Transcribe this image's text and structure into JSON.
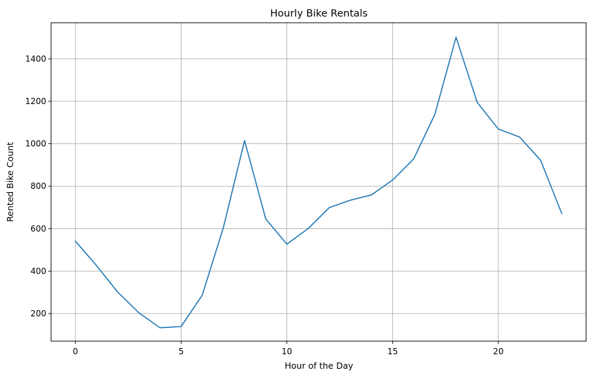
{
  "chart_data": {
    "type": "line",
    "title": "Hourly Bike Rentals",
    "xlabel": "Hour of the Day",
    "ylabel": "Rented Bike Count",
    "xlim": [
      -1.15,
      24.15
    ],
    "ylim": [
      70,
      1570
    ],
    "xticks": [
      0,
      5,
      10,
      15,
      20
    ],
    "yticks": [
      200,
      400,
      600,
      800,
      1000,
      1200,
      1400
    ],
    "grid": true,
    "series": [
      {
        "name": "",
        "color": "#1f77b4",
        "x": [
          0,
          1,
          2,
          3,
          4,
          5,
          6,
          7,
          8,
          9,
          10,
          11,
          12,
          13,
          14,
          15,
          16,
          17,
          18,
          19,
          20,
          21,
          22,
          23
        ],
        "y": [
          541,
          426,
          301,
          204,
          133,
          139,
          287,
          606,
          1015,
          646,
          527,
          600,
          699,
          734,
          759,
          829,
          929,
          1139,
          1502,
          1195,
          1069,
          1032,
          922,
          671
        ]
      }
    ]
  }
}
